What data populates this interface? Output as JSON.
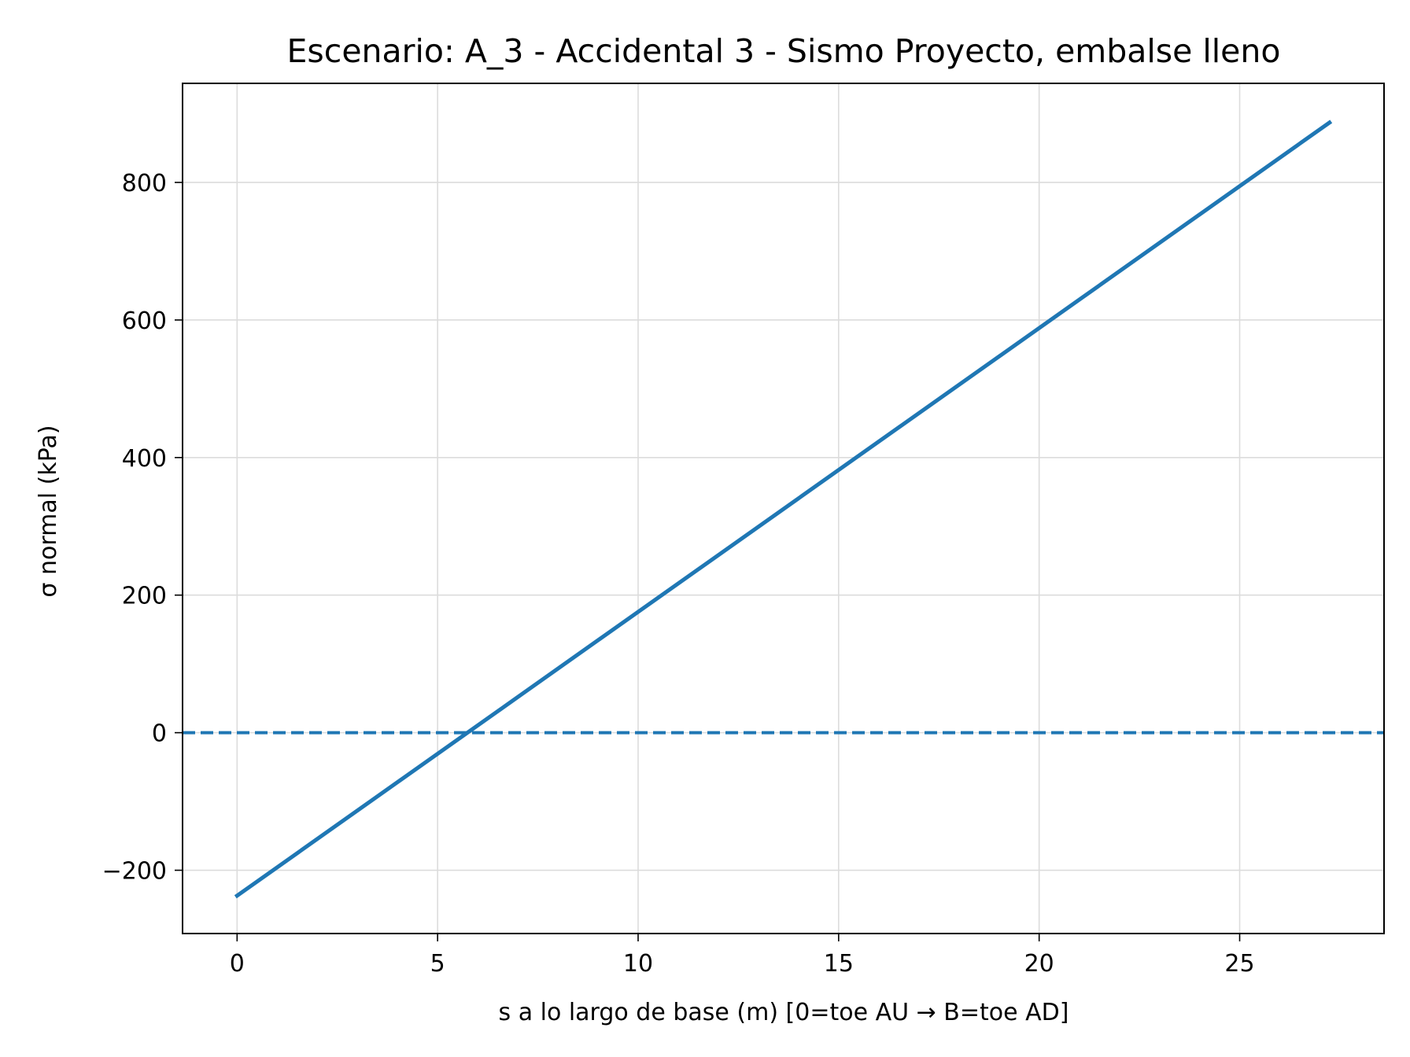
{
  "chart_data": {
    "type": "line",
    "title": "Escenario: A_3 - Accidental 3 - Sismo Proyecto, embalse lleno",
    "xlabel": "s a lo largo de base (m)  [0=toe AU → B=toe AD]",
    "ylabel": "σ normal (kPa)",
    "xlim": [
      -1.36,
      28.6
    ],
    "ylim": [
      -292,
      944
    ],
    "xticks": [
      0,
      5,
      10,
      15,
      20,
      25
    ],
    "xtick_labels": [
      "0",
      "5",
      "10",
      "15",
      "20",
      "25"
    ],
    "yticks": [
      -200,
      0,
      200,
      400,
      600,
      800
    ],
    "ytick_labels": [
      "−200",
      "0",
      "200",
      "400",
      "600",
      "800"
    ],
    "grid": true,
    "series": [
      {
        "x": [
          0,
          27.24
        ],
        "y": [
          -237,
          887
        ],
        "color": "#1f77b4",
        "style": "solid"
      }
    ],
    "reference_lines": [
      {
        "orientation": "horizontal",
        "y": 0,
        "color": "#1f77b4",
        "style": "dashed"
      }
    ]
  }
}
